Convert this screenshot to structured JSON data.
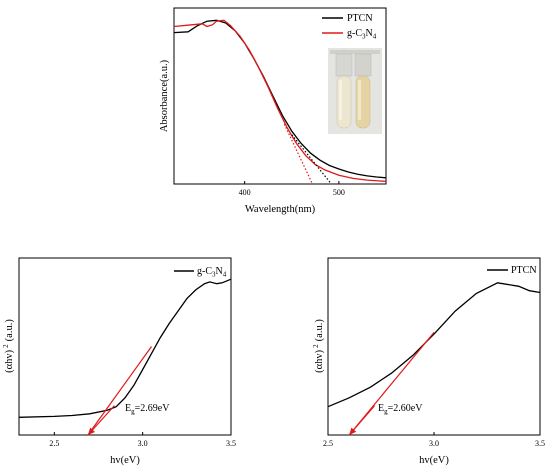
{
  "chart_data": [
    {
      "id": "absorbance",
      "type": "line",
      "xlabel": "Wavelength(nm)",
      "ylabel": "Absorbance(a.u.)",
      "xlim": [
        325,
        550
      ],
      "ylim": [
        0,
        1
      ],
      "x_ticks": [
        {
          "value": 400,
          "label": "400"
        },
        {
          "value": 500,
          "label": "500"
        }
      ],
      "y_ticks": [],
      "legend_position": "top-right",
      "inset": "photo of two sample vials",
      "series": [
        {
          "name": "PTCN",
          "color": "#000000",
          "points": [
            [
              325,
              0.86
            ],
            [
              340,
              0.865
            ],
            [
              350,
              0.9
            ],
            [
              360,
              0.925
            ],
            [
              370,
              0.93
            ],
            [
              380,
              0.915
            ],
            [
              390,
              0.87
            ],
            [
              400,
              0.8
            ],
            [
              410,
              0.71
            ],
            [
              420,
              0.61
            ],
            [
              430,
              0.5
            ],
            [
              440,
              0.39
            ],
            [
              450,
              0.3
            ],
            [
              460,
              0.23
            ],
            [
              470,
              0.175
            ],
            [
              480,
              0.135
            ],
            [
              490,
              0.105
            ],
            [
              500,
              0.085
            ],
            [
              510,
              0.068
            ],
            [
              520,
              0.055
            ],
            [
              530,
              0.046
            ],
            [
              540,
              0.04
            ],
            [
              550,
              0.035
            ]
          ]
        },
        {
          "name": "g-C3N4",
          "color": "#e11919",
          "points": [
            [
              325,
              0.895
            ],
            [
              345,
              0.905
            ],
            [
              355,
              0.91
            ],
            [
              360,
              0.895
            ],
            [
              366,
              0.905
            ],
            [
              370,
              0.925
            ],
            [
              378,
              0.93
            ],
            [
              385,
              0.9
            ],
            [
              395,
              0.84
            ],
            [
              405,
              0.76
            ],
            [
              415,
              0.66
            ],
            [
              425,
              0.55
            ],
            [
              435,
              0.43
            ],
            [
              445,
              0.32
            ],
            [
              455,
              0.23
            ],
            [
              465,
              0.16
            ],
            [
              475,
              0.11
            ],
            [
              485,
              0.08
            ],
            [
              500,
              0.05
            ],
            [
              515,
              0.032
            ],
            [
              530,
              0.022
            ],
            [
              550,
              0.015
            ]
          ]
        }
      ],
      "tangents": [
        {
          "color": "#000000",
          "style": "dotted",
          "from": [
            450,
            0.28
          ],
          "to": [
            492,
            0.0
          ]
        },
        {
          "color": "#e11919",
          "style": "dotted",
          "from": [
            442,
            0.34
          ],
          "to": [
            472,
            0.0
          ]
        }
      ]
    },
    {
      "id": "tauc-gcn",
      "type": "line",
      "xlabel": "hv(eV)",
      "ylabel": "(αhv)",
      "ylabel_sup": "2",
      "ylabel_unit": "(a.u.)",
      "xlim": [
        2.3,
        3.5
      ],
      "ylim": [
        0,
        1
      ],
      "x_ticks": [
        {
          "value": 2.5,
          "label": "2.5"
        },
        {
          "value": 3.0,
          "label": "3.0"
        },
        {
          "value": 3.5,
          "label": "3.5"
        }
      ],
      "legend_position": "top-right",
      "series": [
        {
          "name": "g-C3N4",
          "color": "#000000",
          "points": [
            [
              2.3,
              0.1
            ],
            [
              2.5,
              0.105
            ],
            [
              2.6,
              0.11
            ],
            [
              2.7,
              0.12
            ],
            [
              2.8,
              0.14
            ],
            [
              2.85,
              0.16
            ],
            [
              2.9,
              0.21
            ],
            [
              2.95,
              0.28
            ],
            [
              3.0,
              0.37
            ],
            [
              3.05,
              0.46
            ],
            [
              3.1,
              0.55
            ],
            [
              3.15,
              0.63
            ],
            [
              3.2,
              0.7
            ],
            [
              3.25,
              0.77
            ],
            [
              3.3,
              0.82
            ],
            [
              3.35,
              0.855
            ],
            [
              3.38,
              0.865
            ],
            [
              3.42,
              0.855
            ],
            [
              3.45,
              0.86
            ],
            [
              3.5,
              0.88
            ]
          ]
        }
      ],
      "tangent": {
        "color": "#e11919",
        "from": [
          2.69,
          0.0
        ],
        "to": [
          3.05,
          0.5
        ]
      },
      "annotation": {
        "text": "=2.69eV",
        "base": "E",
        "sub": "g",
        "arrow_to": [
          2.69,
          0.0
        ],
        "anchor": [
          2.84,
          0.2
        ]
      }
    },
    {
      "id": "tauc-ptcn",
      "type": "line",
      "xlabel": "hv(eV)",
      "ylabel": "(αhv)",
      "ylabel_sup": "2",
      "ylabel_unit": "(a.u.)",
      "xlim": [
        2.5,
        3.5
      ],
      "ylim": [
        0,
        1
      ],
      "x_ticks": [
        {
          "value": 2.5,
          "label": "2.5"
        },
        {
          "value": 3.0,
          "label": "3.0"
        },
        {
          "value": 3.5,
          "label": "3.5"
        }
      ],
      "legend_position": "top-right",
      "series": [
        {
          "name": "PTCN",
          "color": "#000000",
          "points": [
            [
              2.5,
              0.16
            ],
            [
              2.6,
              0.21
            ],
            [
              2.7,
              0.27
            ],
            [
              2.8,
              0.35
            ],
            [
              2.9,
              0.45
            ],
            [
              3.0,
              0.57
            ],
            [
              3.1,
              0.7
            ],
            [
              3.2,
              0.8
            ],
            [
              3.3,
              0.86
            ],
            [
              3.4,
              0.84
            ],
            [
              3.45,
              0.815
            ],
            [
              3.5,
              0.805
            ]
          ]
        }
      ],
      "tangent": {
        "color": "#e11919",
        "from": [
          2.6,
          0.0
        ],
        "to": [
          3.0,
          0.58
        ]
      },
      "annotation": {
        "text": "=2.60eV",
        "base": "E",
        "sub": "g",
        "arrow_to": [
          2.6,
          0.0
        ],
        "anchor": [
          2.72,
          0.2
        ]
      }
    }
  ],
  "legend_labels": {
    "ptcn": "PTCN",
    "gcn_base": "g-C",
    "gcn_sub1": "3",
    "gcn_mid": "N",
    "gcn_sub2": "4"
  }
}
